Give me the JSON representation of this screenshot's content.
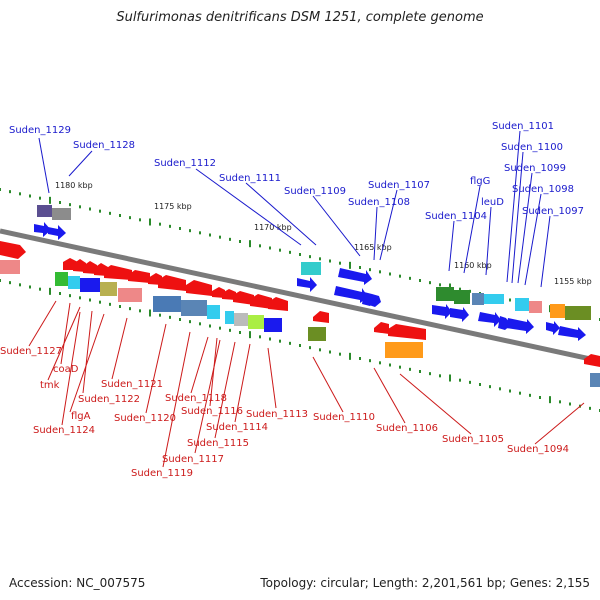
{
  "title": "Sulfurimonas denitrificans DSM 1251, complete genome",
  "footer": {
    "accession": "Accession: NC_007575",
    "summary": "Topology: circular; Length: 2,201,561 bp; Genes: 2,155"
  },
  "colors": {
    "forward_label": "#1a1acc",
    "reverse_label": "#cc1a1a",
    "backbone": "#808080",
    "tick": "#2a8a2a"
  },
  "scale_labels": [
    {
      "text": "1180 kbp"
    },
    {
      "text": "1175 kbp"
    },
    {
      "text": "1170 kbp"
    },
    {
      "text": "1165 kbp"
    },
    {
      "text": "1160 kbp"
    },
    {
      "text": "1155 kbp"
    }
  ],
  "forward_gene_labels": [
    "Suden_1129",
    "Suden_1128",
    "Suden_1112",
    "Suden_1111",
    "Suden_1109",
    "Suden_1107",
    "Suden_1108",
    "Suden_1104",
    "flgG",
    "leuD",
    "Suden_1101",
    "Suden_1100",
    "Suden_1099",
    "Suden_1098",
    "Suden_1097"
  ],
  "reverse_gene_labels": [
    "Suden_1127",
    "coaD",
    "tmk",
    "Suden_1122",
    "flgA",
    "Suden_1124",
    "Suden_1121",
    "Suden_1120",
    "Suden_1118",
    "Suden_1116",
    "Suden_1115",
    "Suden_1117",
    "Suden_1119",
    "Suden_1114",
    "Suden_1113",
    "Suden_1110",
    "Suden_1106",
    "Suden_1105",
    "Suden_1094"
  ]
}
